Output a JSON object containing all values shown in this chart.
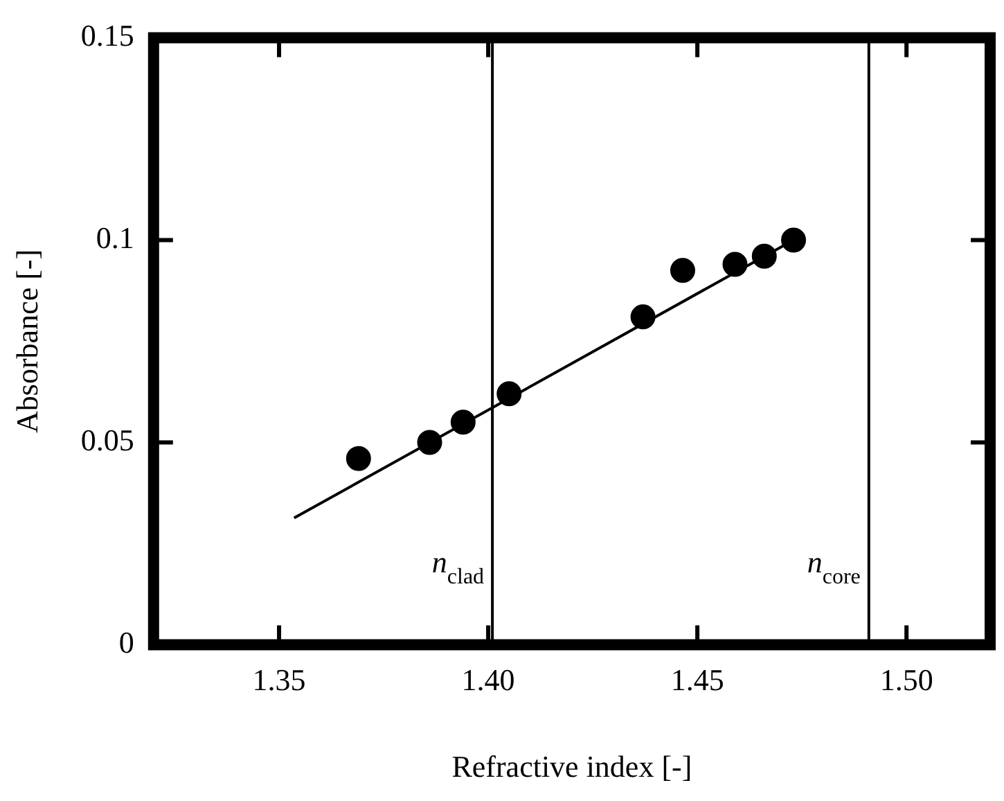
{
  "chart_data": {
    "type": "scatter",
    "xlabel": "Refractive index [-]",
    "ylabel": "Absorbance [-]",
    "xlim": [
      1.32,
      1.52
    ],
    "xticks": [
      {
        "value": 1.35,
        "label": "1.35"
      },
      {
        "value": 1.4,
        "label": "1.40"
      },
      {
        "value": 1.45,
        "label": "1.45"
      },
      {
        "value": 1.5,
        "label": "1.50"
      }
    ],
    "ylim": [
      0,
      0.15
    ],
    "yticks": [
      0,
      0.05,
      0.1,
      0.15
    ],
    "grid": false,
    "legend": false,
    "marker": "circle",
    "series": [
      {
        "type": "scatter",
        "color": "#000000",
        "x": [
          1.369,
          1.386,
          1.394,
          1.405,
          1.437,
          1.4465,
          1.459,
          1.466,
          1.473
        ],
        "values": [
          0.046,
          0.05,
          0.055,
          0.062,
          0.081,
          0.0925,
          0.094,
          0.096,
          0.1
        ]
      },
      {
        "type": "line",
        "color": "#000000",
        "line_style": "solid",
        "marker": "none",
        "x": [
          1.3536,
          1.473
        ],
        "values": [
          0.0313,
          0.1
        ]
      }
    ],
    "ref_lines": [
      {
        "axis": "x",
        "value": 1.401,
        "label": "n$_{clad}$",
        "color": "#000000"
      },
      {
        "axis": "x",
        "value": 1.491,
        "label": "n$_{core}$",
        "color": "#000000"
      }
    ]
  }
}
